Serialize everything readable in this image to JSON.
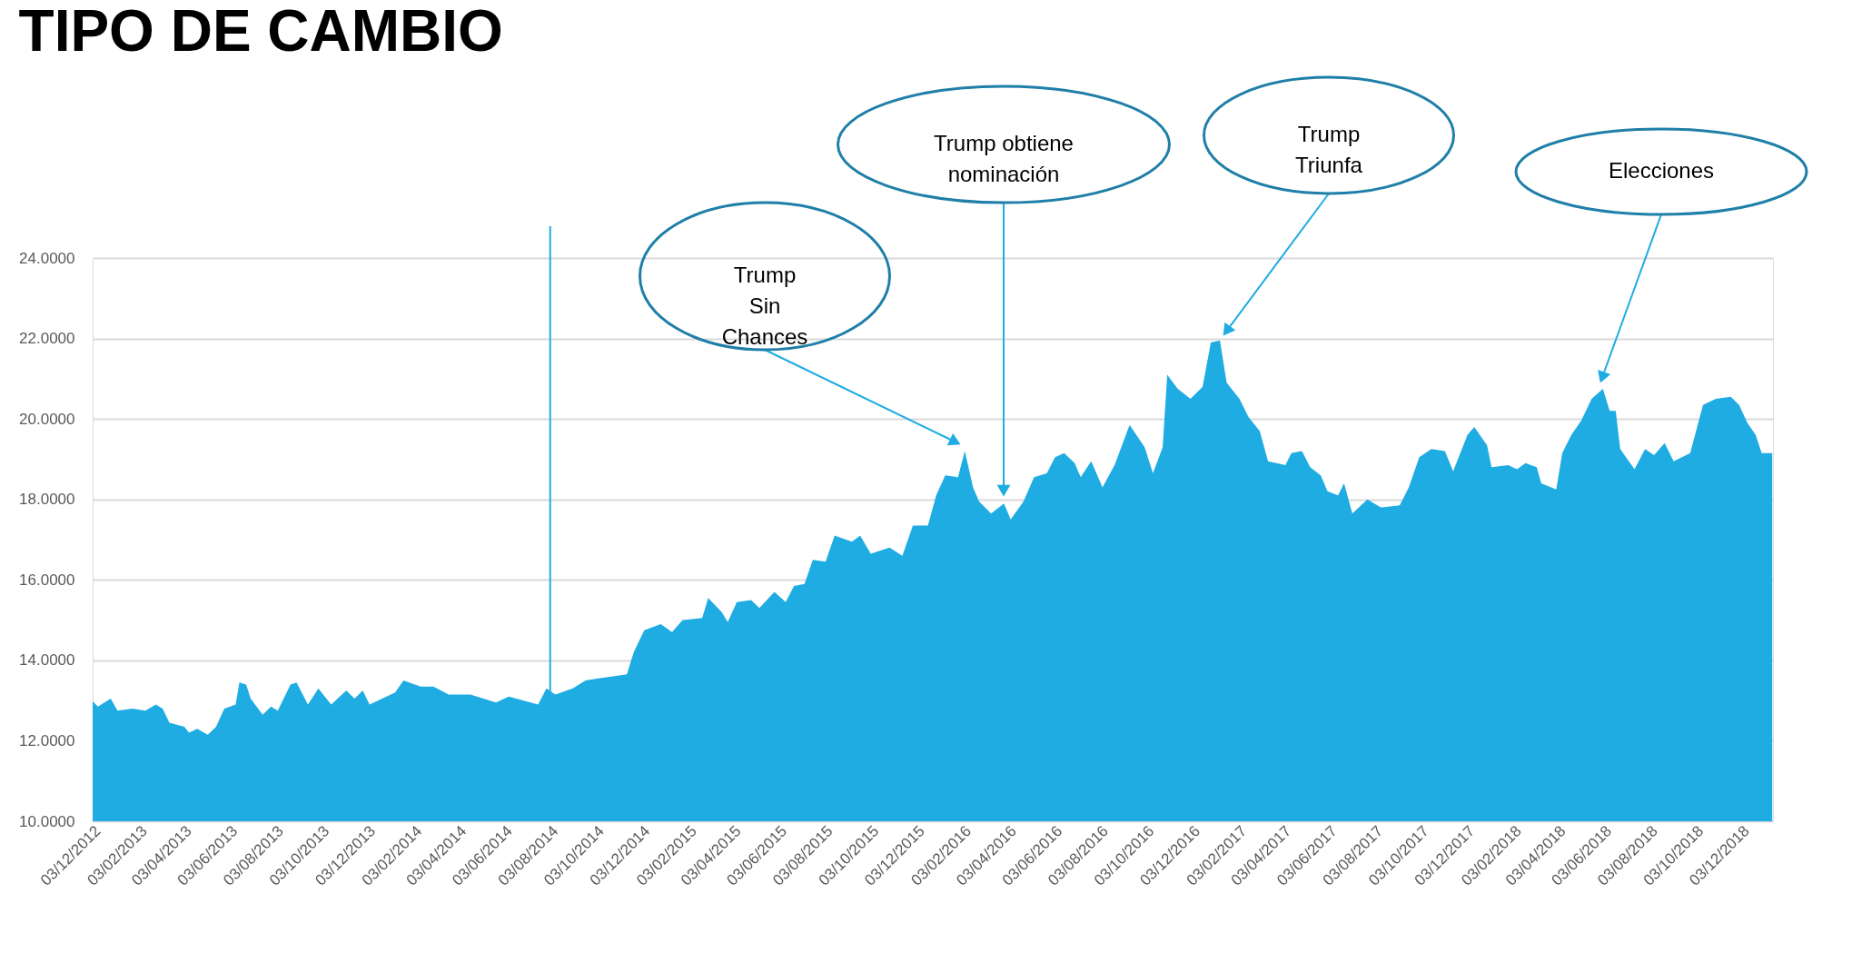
{
  "chart_data": {
    "type": "area",
    "title": "TIPO DE CAMBIO",
    "x": [
      "2012-12-03",
      "2012-12-10",
      "2012-12-27",
      "2013-01-05",
      "2013-01-25",
      "2013-02-11",
      "2013-02-25",
      "2013-03-06",
      "2013-03-15",
      "2013-04-04",
      "2013-04-10",
      "2013-04-21",
      "2013-05-05",
      "2013-05-16",
      "2013-05-27",
      "2013-06-11",
      "2013-06-16",
      "2013-06-25",
      "2013-07-01",
      "2013-07-17",
      "2013-07-28",
      "2013-08-06",
      "2013-08-23",
      "2013-08-31",
      "2013-09-15",
      "2013-09-29",
      "2013-10-16",
      "2013-11-05",
      "2013-11-16",
      "2013-11-27",
      "2013-12-06",
      "2014-01-09",
      "2014-01-20",
      "2014-02-12",
      "2014-03-01",
      "2014-03-21",
      "2014-04-19",
      "2014-05-23",
      "2014-06-09",
      "2014-07-18",
      "2014-07-29",
      "2014-08-10",
      "2014-09-02",
      "2014-09-19",
      "2014-10-06",
      "2014-11-13",
      "2014-11-22",
      "2014-12-06",
      "2014-12-28",
      "2015-01-12",
      "2015-01-26",
      "2015-02-21",
      "2015-03-01",
      "2015-03-19",
      "2015-03-27",
      "2015-04-08",
      "2015-04-27",
      "2015-05-08",
      "2015-05-28",
      "2015-06-12",
      "2015-06-23",
      "2015-07-07",
      "2015-07-18",
      "2015-08-04",
      "2015-08-16",
      "2015-09-08",
      "2015-09-19",
      "2015-10-03",
      "2015-10-28",
      "2015-11-14",
      "2015-11-28",
      "2015-12-18",
      "2015-12-29",
      "2016-01-10",
      "2016-01-27",
      "2016-02-05",
      "2016-02-16",
      "2016-02-24",
      "2016-03-11",
      "2016-03-28",
      "2016-04-06",
      "2016-04-23",
      "2016-05-07",
      "2016-05-24",
      "2016-06-04",
      "2016-06-16",
      "2016-06-30",
      "2016-07-08",
      "2016-07-22",
      "2016-08-06",
      "2016-08-22",
      "2016-09-11",
      "2016-10-01",
      "2016-10-12",
      "2016-10-25",
      "2016-10-31",
      "2016-11-14",
      "2016-12-01",
      "2016-12-17",
      "2016-12-28",
      "2017-01-09",
      "2017-01-18",
      "2017-02-04",
      "2017-02-16",
      "2017-03-03",
      "2017-03-14",
      "2017-04-06",
      "2017-04-14",
      "2017-04-28",
      "2017-05-09",
      "2017-05-23",
      "2017-06-01",
      "2017-06-15",
      "2017-06-23",
      "2017-07-04",
      "2017-07-24",
      "2017-08-11",
      "2017-09-05",
      "2017-09-17",
      "2017-10-01",
      "2017-10-17",
      "2017-11-04",
      "2017-11-15",
      "2017-12-04",
      "2017-12-13",
      "2017-12-30",
      "2018-01-05",
      "2018-01-27",
      "2018-02-08",
      "2018-02-19",
      "2018-03-06",
      "2018-03-12",
      "2018-04-01",
      "2018-04-09",
      "2018-04-21",
      "2018-05-04",
      "2018-05-18",
      "2018-06-02",
      "2018-06-11",
      "2018-06-19",
      "2018-06-25",
      "2018-07-14",
      "2018-07-28",
      "2018-08-09",
      "2018-08-23",
      "2018-09-04",
      "2018-09-26",
      "2018-10-13",
      "2018-10-30",
      "2018-11-19",
      "2018-11-30",
      "2018-12-11",
      "2018-12-22",
      "2018-12-30",
      "2019-01-13"
    ],
    "series": [
      {
        "color": "#1eace2",
        "values": [
          12.98,
          12.85,
          13.05,
          12.75,
          12.8,
          12.75,
          12.9,
          12.8,
          12.45,
          12.35,
          12.2,
          12.3,
          12.15,
          12.35,
          12.8,
          12.9,
          13.45,
          13.4,
          13.05,
          12.65,
          12.85,
          12.75,
          13.4,
          13.45,
          12.9,
          13.3,
          12.9,
          13.25,
          13.05,
          13.25,
          12.9,
          13.2,
          13.5,
          13.35,
          13.35,
          13.15,
          13.15,
          12.95,
          13.1,
          12.9,
          13.3,
          13.15,
          13.3,
          13.5,
          13.55,
          13.65,
          14.2,
          14.75,
          14.9,
          14.7,
          15.0,
          15.05,
          15.55,
          15.2,
          14.95,
          15.45,
          15.5,
          15.3,
          15.7,
          15.45,
          15.85,
          15.9,
          16.5,
          16.45,
          17.1,
          16.95,
          17.1,
          16.65,
          16.8,
          16.6,
          17.35,
          17.35,
          18.1,
          18.6,
          18.55,
          19.2,
          18.3,
          17.95,
          17.65,
          17.9,
          17.5,
          17.95,
          18.55,
          18.65,
          19.05,
          19.15,
          18.9,
          18.55,
          18.95,
          18.3,
          18.85,
          19.85,
          19.3,
          18.65,
          19.3,
          21.1,
          20.75,
          20.5,
          20.8,
          21.9,
          21.95,
          20.9,
          20.5,
          20.05,
          19.7,
          18.95,
          18.85,
          19.15,
          19.2,
          18.8,
          18.6,
          18.2,
          18.1,
          18.4,
          17.65,
          18.0,
          17.8,
          17.85,
          18.3,
          19.05,
          19.25,
          19.2,
          18.7,
          19.6,
          19.8,
          19.35,
          18.8,
          18.85,
          18.75,
          18.9,
          18.8,
          18.4,
          18.25,
          19.15,
          19.6,
          19.95,
          20.5,
          20.75,
          20.2,
          20.2,
          19.25,
          18.75,
          19.25,
          19.1,
          19.4,
          18.95,
          19.15,
          20.35,
          20.5,
          20.55,
          20.35,
          19.9,
          19.6,
          19.15,
          19.15
        ]
      }
    ],
    "xlim": [
      "2012-12-03",
      "2019-01-14"
    ],
    "xticks": [
      {
        "value": "2012-12-03",
        "label": "03/12/2012"
      },
      {
        "value": "2013-02-03",
        "label": "03/02/2013"
      },
      {
        "value": "2013-04-03",
        "label": "03/04/2013"
      },
      {
        "value": "2013-06-03",
        "label": "03/06/2013"
      },
      {
        "value": "2013-08-03",
        "label": "03/08/2013"
      },
      {
        "value": "2013-10-03",
        "label": "03/10/2013"
      },
      {
        "value": "2013-12-03",
        "label": "03/12/2013"
      },
      {
        "value": "2014-02-03",
        "label": "03/02/2014"
      },
      {
        "value": "2014-04-03",
        "label": "03/04/2014"
      },
      {
        "value": "2014-06-03",
        "label": "03/06/2014"
      },
      {
        "value": "2014-08-03",
        "label": "03/08/2014"
      },
      {
        "value": "2014-10-03",
        "label": "03/10/2014"
      },
      {
        "value": "2014-12-03",
        "label": "03/12/2014"
      },
      {
        "value": "2015-02-03",
        "label": "03/02/2015"
      },
      {
        "value": "2015-04-03",
        "label": "03/04/2015"
      },
      {
        "value": "2015-06-03",
        "label": "03/06/2015"
      },
      {
        "value": "2015-08-03",
        "label": "03/08/2015"
      },
      {
        "value": "2015-10-03",
        "label": "03/10/2015"
      },
      {
        "value": "2015-12-03",
        "label": "03/12/2015"
      },
      {
        "value": "2016-02-03",
        "label": "03/02/2016"
      },
      {
        "value": "2016-04-03",
        "label": "03/04/2016"
      },
      {
        "value": "2016-06-03",
        "label": "03/06/2016"
      },
      {
        "value": "2016-08-03",
        "label": "03/08/2016"
      },
      {
        "value": "2016-10-03",
        "label": "03/10/2016"
      },
      {
        "value": "2016-12-03",
        "label": "03/12/2016"
      },
      {
        "value": "2017-02-03",
        "label": "03/02/2017"
      },
      {
        "value": "2017-04-03",
        "label": "03/04/2017"
      },
      {
        "value": "2017-06-03",
        "label": "03/06/2017"
      },
      {
        "value": "2017-08-03",
        "label": "03/08/2017"
      },
      {
        "value": "2017-10-03",
        "label": "03/10/2017"
      },
      {
        "value": "2017-12-03",
        "label": "03/12/2017"
      },
      {
        "value": "2018-02-03",
        "label": "03/02/2018"
      },
      {
        "value": "2018-04-03",
        "label": "03/04/2018"
      },
      {
        "value": "2018-06-03",
        "label": "03/06/2018"
      },
      {
        "value": "2018-08-03",
        "label": "03/08/2018"
      },
      {
        "value": "2018-10-03",
        "label": "03/10/2018"
      },
      {
        "value": "2018-12-03",
        "label": "03/12/2018"
      }
    ],
    "ylim": [
      10,
      24
    ],
    "yticks": [
      {
        "value": 10,
        "label": "10.0000"
      },
      {
        "value": 12,
        "label": "12.0000"
      },
      {
        "value": 14,
        "label": "14.0000"
      },
      {
        "value": 16,
        "label": "16.0000"
      },
      {
        "value": 18,
        "label": "18.0000"
      },
      {
        "value": 20,
        "label": "20.0000"
      },
      {
        "value": 22,
        "label": "22.0000"
      },
      {
        "value": 24,
        "label": "24.0000"
      }
    ],
    "grid": "y",
    "ref_lines": [
      {
        "axis": "x",
        "value": "2014-08-03",
        "color": "#1eace2"
      }
    ],
    "annotations": [
      "Trump\nSin\nChances",
      "Trump obtiene\nnominación",
      "Trump\nTriunfa",
      "Elecciones"
    ]
  }
}
